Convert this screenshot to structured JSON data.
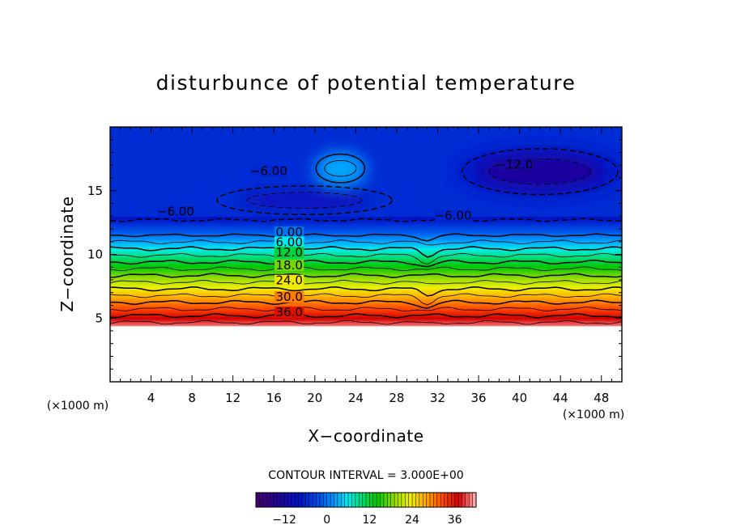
{
  "chart_data": {
    "type": "heatmap",
    "title": "disturbunce of potential temperature",
    "xlabel": "X−coordinate",
    "ylabel": "Z−coordinate",
    "x_unit": "(×1000 m)",
    "y_unit": "(×1000 m)",
    "xlim": [
      0,
      50
    ],
    "ylim": [
      0,
      20
    ],
    "x_ticks": [
      "4",
      "8",
      "12",
      "16",
      "20",
      "24",
      "28",
      "32",
      "36",
      "40",
      "44",
      "48"
    ],
    "x_tick_values": [
      4,
      8,
      12,
      16,
      20,
      24,
      28,
      32,
      36,
      40,
      44,
      48
    ],
    "y_ticks": [
      "5",
      "10",
      "15"
    ],
    "y_tick_values": [
      5,
      10,
      15
    ],
    "contour_interval_text": "CONTOUR INTERVAL = 3.000E+00",
    "contour_interval": 3.0,
    "contour_labels": [
      {
        "text": "0.00",
        "x": 17.5,
        "z": 11.5,
        "value": 0
      },
      {
        "text": "6.00",
        "x": 17.5,
        "z": 10.7,
        "value": 6
      },
      {
        "text": "12.0",
        "x": 17.5,
        "z": 9.9,
        "value": 12
      },
      {
        "text": "18.0",
        "x": 17.5,
        "z": 8.9,
        "value": 18
      },
      {
        "text": "24.0",
        "x": 17.5,
        "z": 7.7,
        "value": 24
      },
      {
        "text": "30.0",
        "x": 17.5,
        "z": 6.4,
        "value": 30
      },
      {
        "text": "36.0",
        "x": 17.5,
        "z": 5.2,
        "value": 36
      },
      {
        "text": "−6.00",
        "x": 15.5,
        "z": 16.3,
        "value": -6
      },
      {
        "text": "−6.00",
        "x": 6.4,
        "z": 13.1,
        "value": -6
      },
      {
        "text": "−6.00",
        "x": 33.5,
        "z": 12.8,
        "value": -6
      },
      {
        "text": "−12.0",
        "x": 39.5,
        "z": 16.8,
        "value": -12
      }
    ],
    "stratification": {
      "top_of_field_z": 4.4,
      "value_at_base": 40,
      "zero_line_z": 11.5,
      "gradient_per_km": -5.7
    },
    "anomalies": [
      {
        "sign": "negative",
        "peak": -13,
        "x_range": [
          34,
          50
        ],
        "z_range": [
          14.5,
          18.5
        ]
      },
      {
        "sign": "negative",
        "peak": -9,
        "x_range": [
          10,
          28
        ],
        "z_range": [
          13,
          15.5
        ]
      },
      {
        "sign": "positive",
        "peak": 3,
        "x_range": [
          20,
          25
        ],
        "z_range": [
          15.5,
          18
        ]
      }
    ],
    "colorbar": {
      "ticks": [
        "−12",
        "0",
        "12",
        "24",
        "36"
      ],
      "tick_values": [
        -12,
        0,
        12,
        24,
        36
      ],
      "range": [
        -20,
        42
      ]
    },
    "grid": false,
    "legend": "none"
  }
}
